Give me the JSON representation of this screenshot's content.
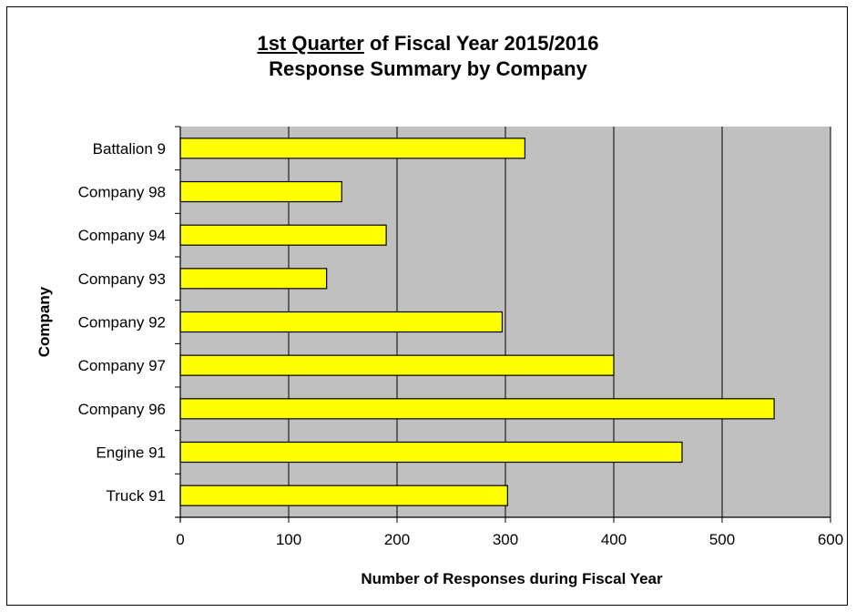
{
  "chart_data": {
    "type": "bar",
    "orientation": "horizontal",
    "title_underlined": "1st Quarter",
    "title_rest": " of Fiscal Year 2015/2016",
    "subtitle": "Response Summary by Company",
    "xlabel": "Number of Responses during Fiscal Year",
    "ylabel": "Company",
    "xlim": [
      0,
      600
    ],
    "xticks": [
      0,
      100,
      200,
      300,
      400,
      500,
      600
    ],
    "grid": "vertical",
    "legend": "none",
    "categories": [
      "Battalion 9",
      "Company 98",
      "Company 94",
      "Company 93",
      "Company 92",
      "Company 97",
      "Company 96",
      "Engine 91",
      "Truck 91"
    ],
    "values": [
      318,
      149,
      190,
      135,
      297,
      400,
      548,
      463,
      302
    ],
    "colors": {
      "bar": "#ffff00",
      "bar_border": "#000000",
      "plot_bg": "#c0c0c0"
    }
  }
}
